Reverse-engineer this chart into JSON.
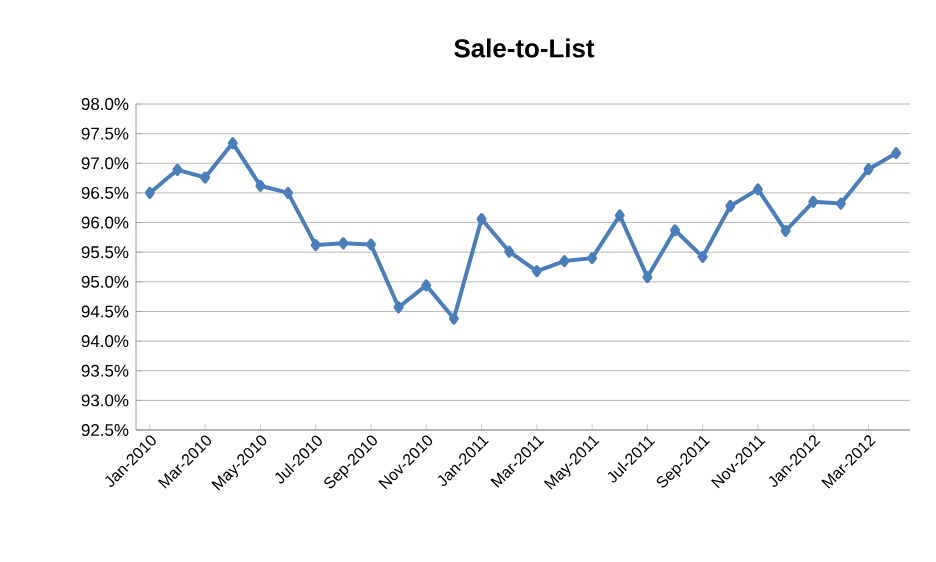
{
  "chart_data": {
    "type": "line",
    "title": "Sale-to-List",
    "categories": [
      "Jan-2010",
      null,
      "Mar-2010",
      null,
      "May-2010",
      null,
      "Jul-2010",
      null,
      "Sep-2010",
      null,
      "Nov-2010",
      null,
      "Jan-2011",
      null,
      "Mar-2011",
      null,
      "May-2011",
      null,
      "Jul-2011",
      null,
      "Sep-2011",
      null,
      "Nov-2011",
      null,
      "Jan-2012",
      null,
      "Mar-2012",
      null
    ],
    "values": [
      96.5,
      96.89,
      96.76,
      97.34,
      96.62,
      96.5,
      95.62,
      95.65,
      95.63,
      94.57,
      94.94,
      94.38,
      96.06,
      95.51,
      95.18,
      95.35,
      95.4,
      96.12,
      95.08,
      95.87,
      95.42,
      96.28,
      96.56,
      95.86,
      96.35,
      96.32,
      96.9,
      97.17
    ],
    "color": "#4a7ebb",
    "marker": "diamond",
    "line_style": "solid",
    "grid": "y",
    "ylim": [
      92.5,
      98.0
    ],
    "yticks": [
      {
        "value": 92.5,
        "label": "92.5%"
      },
      {
        "value": 93.0,
        "label": "93.0%"
      },
      {
        "value": 93.5,
        "label": "93.5%"
      },
      {
        "value": 94.0,
        "label": "94.0%"
      },
      {
        "value": 94.5,
        "label": "94.5%"
      },
      {
        "value": 95.0,
        "label": "95.0%"
      },
      {
        "value": 95.5,
        "label": "95.5%"
      },
      {
        "value": 96.0,
        "label": "96.0%"
      },
      {
        "value": 96.5,
        "label": "96.5%"
      },
      {
        "value": 97.0,
        "label": "97.0%"
      },
      {
        "value": 97.5,
        "label": "97.5%"
      },
      {
        "value": 98.0,
        "label": "98.0%"
      }
    ]
  }
}
